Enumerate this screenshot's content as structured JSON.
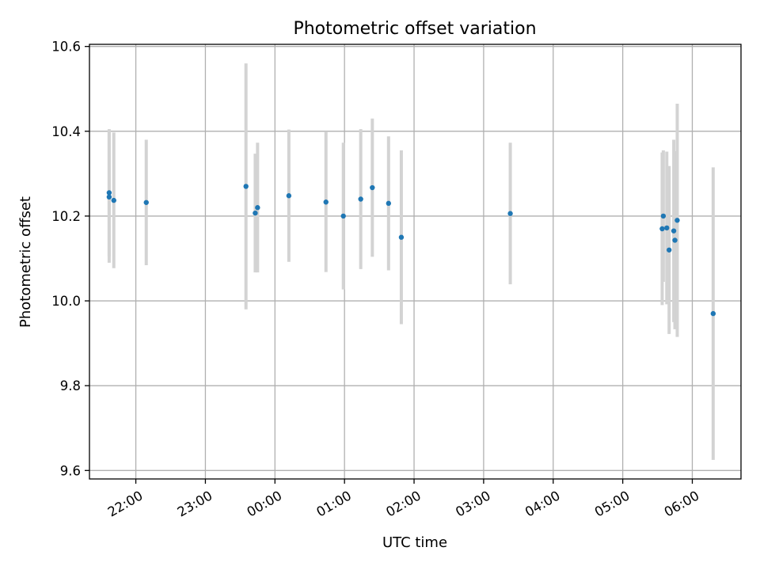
{
  "chart_data": {
    "type": "scatter",
    "title": "Photometric offset variation",
    "xlabel": "UTC time",
    "ylabel": "Photometric offset",
    "ylim": [
      9.58,
      10.605
    ],
    "xlim": [
      "21:20",
      "06:42"
    ],
    "x_ticks": [
      "22:00",
      "23:00",
      "00:00",
      "01:00",
      "02:00",
      "03:00",
      "04:00",
      "05:00",
      "06:00"
    ],
    "y_ticks": [
      "9.6",
      "9.8",
      "10.0",
      "10.2",
      "10.4",
      "10.6"
    ],
    "grid": true,
    "colors": {
      "points": "#1f77b4",
      "errorbars": "#d3d3d3"
    },
    "points": [
      {
        "time": "21:37",
        "y": 10.255,
        "err": 0.15
      },
      {
        "time": "21:37",
        "y": 10.245,
        "err": 0.155
      },
      {
        "time": "21:41",
        "y": 10.237,
        "err": 0.16
      },
      {
        "time": "22:09",
        "y": 10.232,
        "err": 0.148
      },
      {
        "time": "23:35",
        "y": 10.27,
        "err": 0.29
      },
      {
        "time": "23:43",
        "y": 10.207,
        "err": 0.14
      },
      {
        "time": "23:45",
        "y": 10.22,
        "err": 0.153
      },
      {
        "time": "00:12",
        "y": 10.248,
        "err": 0.156
      },
      {
        "time": "00:44",
        "y": 10.233,
        "err": 0.165
      },
      {
        "time": "00:59",
        "y": 10.2,
        "err": 0.173
      },
      {
        "time": "01:14",
        "y": 10.24,
        "err": 0.165
      },
      {
        "time": "01:24",
        "y": 10.267,
        "err": 0.163
      },
      {
        "time": "01:38",
        "y": 10.23,
        "err": 0.158
      },
      {
        "time": "01:49",
        "y": 10.15,
        "err": 0.205
      },
      {
        "time": "03:23",
        "y": 10.206,
        "err": 0.167
      },
      {
        "time": "05:34",
        "y": 10.17,
        "err": 0.18
      },
      {
        "time": "05:35",
        "y": 10.2,
        "err": 0.155
      },
      {
        "time": "05:38",
        "y": 10.172,
        "err": 0.18
      },
      {
        "time": "05:40",
        "y": 10.12,
        "err": 0.198
      },
      {
        "time": "05:44",
        "y": 10.165,
        "err": 0.215
      },
      {
        "time": "05:45",
        "y": 10.143,
        "err": 0.21
      },
      {
        "time": "05:47",
        "y": 10.19,
        "err": 0.275
      },
      {
        "time": "06:18",
        "y": 9.97,
        "err": 0.345
      }
    ]
  }
}
